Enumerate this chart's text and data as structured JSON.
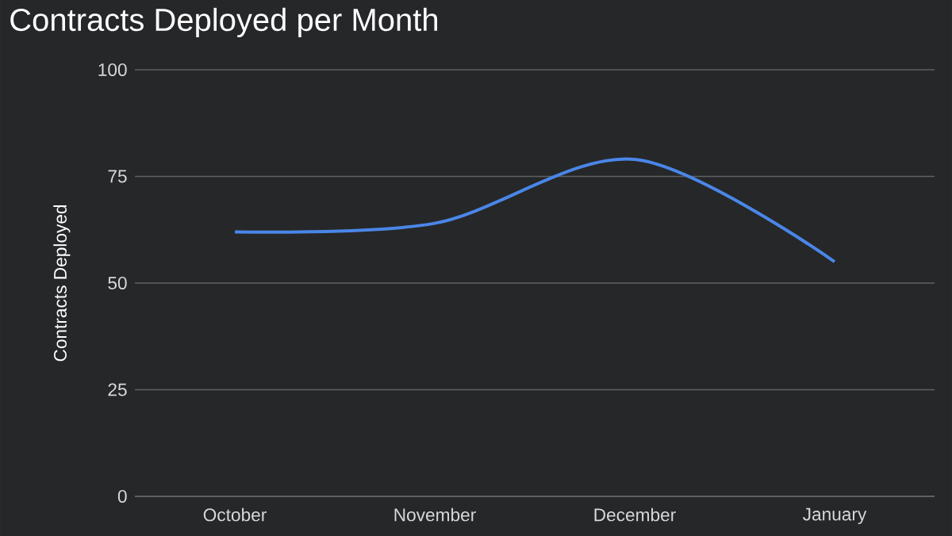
{
  "chart_data": {
    "type": "line",
    "title": "Contracts Deployed per Month",
    "ylabel": "Contracts Deployed",
    "categories": [
      "October",
      "November",
      "December",
      "January"
    ],
    "values": [
      62,
      64,
      79,
      55
    ],
    "color": "#4a86e8",
    "ylim": [
      0,
      100
    ],
    "yticks": [
      0,
      25,
      50,
      75,
      100
    ],
    "grid": "y"
  }
}
